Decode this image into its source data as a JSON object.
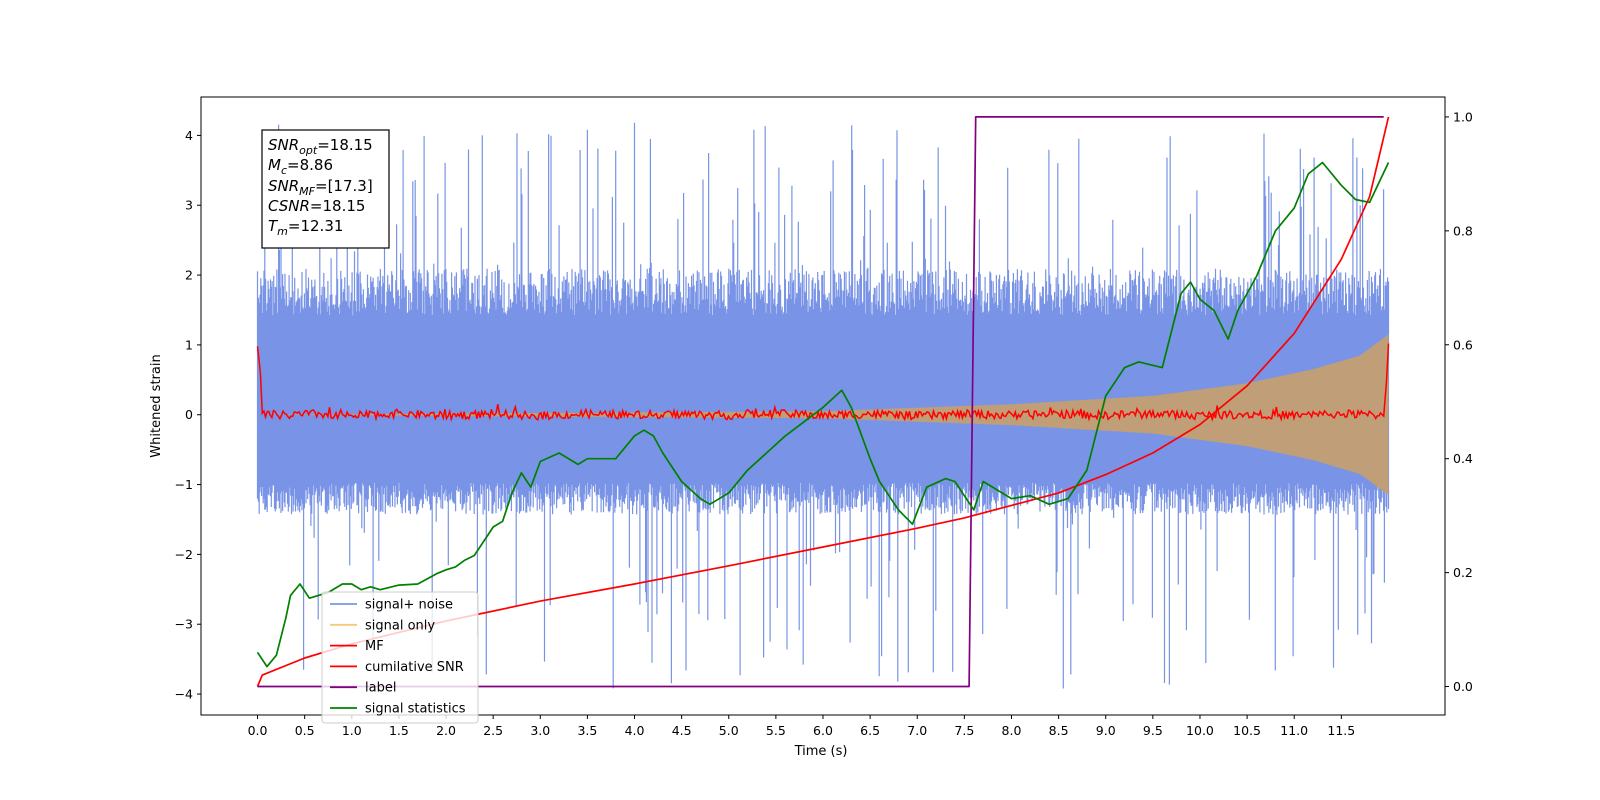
{
  "chart_data": {
    "type": "line",
    "xlabel": "Time (s)",
    "ylabel": "Whitened strain",
    "ylabel_right": "",
    "xlim": [
      -0.6,
      12.6
    ],
    "ylim_left": [
      -4.3,
      4.55
    ],
    "ylim_right": [
      -0.05,
      1.035
    ],
    "grid": false,
    "legend_position": "lower-left",
    "x_ticks": [
      0.0,
      0.5,
      1.0,
      1.5,
      2.0,
      2.5,
      3.0,
      3.5,
      4.0,
      4.5,
      5.0,
      5.5,
      6.0,
      6.5,
      7.0,
      7.5,
      8.0,
      8.5,
      9.0,
      9.5,
      10.0,
      10.5,
      11.0,
      11.5
    ],
    "x_tick_labels": [
      "0.0",
      "0.5",
      "1.0",
      "1.5",
      "2.0",
      "2.5",
      "3.0",
      "3.5",
      "4.0",
      "4.5",
      "5.0",
      "5.5",
      "6.0",
      "6.5",
      "7.0",
      "7.5",
      "8.0",
      "8.5",
      "9.0",
      "9.5",
      "10.0",
      "10.5",
      "11.0",
      "11.5"
    ],
    "y_left_ticks": [
      4,
      3,
      2,
      1,
      0,
      -1,
      -2,
      -3,
      -4
    ],
    "y_left_tick_labels": [
      "4",
      "3",
      "2",
      "1",
      "0",
      "−1",
      "−2",
      "−3",
      "−4"
    ],
    "y_right_ticks": [
      1.0,
      0.8,
      0.6,
      0.4,
      0.2,
      0.0
    ],
    "y_right_tick_labels": [
      "1.0",
      "0.8",
      "0.6",
      "0.4",
      "0.2",
      "0.0"
    ],
    "annotation": [
      {
        "name": "SNR",
        "sub": "opt",
        "value": "=18.15"
      },
      {
        "name": "M",
        "sub": "c",
        "value": "=8.86"
      },
      {
        "name": "SNR",
        "sub": "MF",
        "value": "=[17.3]"
      },
      {
        "name": "CSNR",
        "sub": "",
        "value": "=18.15"
      },
      {
        "name": "T",
        "sub": "m",
        "value": "=12.31"
      }
    ],
    "series": [
      {
        "name": "signal+ noise",
        "axis": "left",
        "color": "#7994e6",
        "kind": "noise-envelope",
        "x_range": [
          0.0,
          12.0
        ],
        "typical_band": [
          -1.3,
          1.9
        ],
        "max_peak": 4.18,
        "min_peak": -3.92
      },
      {
        "name": "signal only",
        "axis": "left",
        "color": "#f5c878",
        "kind": "chirp-envelope",
        "x_range": [
          0.0,
          12.0
        ],
        "amplitude": {
          "x": [
            0,
            6,
            8,
            9.5,
            10.5,
            11.2,
            11.7,
            12.0
          ],
          "y": [
            0.0,
            0.05,
            0.15,
            0.27,
            0.45,
            0.65,
            0.85,
            1.15
          ]
        }
      },
      {
        "name": "MF",
        "axis": "left",
        "color": "#ff0000",
        "kind": "line",
        "x": [
          0.0,
          0.03,
          0.05,
          0.3,
          0.6,
          1.0,
          1.5,
          2.0,
          2.5,
          3.0,
          3.5,
          4.0,
          4.5,
          5.0,
          5.5,
          6.0,
          6.5,
          7.0,
          7.5,
          8.0,
          8.5,
          9.0,
          9.5,
          10.0,
          10.5,
          11.0,
          11.5,
          11.95,
          11.98,
          12.0
        ],
        "y": [
          0.98,
          0.6,
          0.02,
          -0.03,
          0.04,
          -0.05,
          0.06,
          -0.04,
          0.03,
          -0.05,
          0.04,
          -0.02,
          0.03,
          -0.04,
          0.05,
          -0.03,
          0.04,
          -0.05,
          0.03,
          -0.02,
          0.04,
          -0.03,
          0.05,
          -0.04,
          0.03,
          -0.03,
          0.04,
          -0.02,
          0.5,
          1.02
        ]
      },
      {
        "name": "cumilative SNR",
        "axis": "right",
        "color": "#ff0000",
        "kind": "line",
        "x": [
          0.0,
          0.05,
          0.5,
          1,
          2,
          3,
          4,
          5,
          6,
          7,
          7.5,
          8,
          8.5,
          9,
          9.5,
          10,
          10.5,
          11,
          11.5,
          11.8,
          12.0
        ],
        "y": [
          0.0,
          0.02,
          0.05,
          0.075,
          0.115,
          0.15,
          0.18,
          0.212,
          0.245,
          0.278,
          0.296,
          0.318,
          0.34,
          0.372,
          0.41,
          0.46,
          0.528,
          0.62,
          0.75,
          0.86,
          1.0
        ]
      },
      {
        "name": "label",
        "axis": "right",
        "color": "#800080",
        "kind": "line",
        "x": [
          0.0,
          7.55,
          7.62,
          11.95
        ],
        "y": [
          0.0,
          0.0,
          1.0,
          1.0
        ]
      },
      {
        "name": "signal statistics",
        "axis": "right",
        "color": "#008000",
        "kind": "line",
        "x": [
          0.0,
          0.1,
          0.2,
          0.3,
          0.35,
          0.45,
          0.55,
          0.75,
          0.9,
          1.0,
          1.1,
          1.2,
          1.3,
          1.5,
          1.7,
          1.9,
          2.0,
          2.1,
          2.2,
          2.3,
          2.5,
          2.6,
          2.7,
          2.8,
          2.9,
          3.0,
          3.2,
          3.4,
          3.5,
          3.8,
          4.0,
          4.1,
          4.2,
          4.3,
          4.5,
          4.7,
          4.8,
          5.0,
          5.2,
          5.4,
          5.6,
          5.8,
          6.0,
          6.2,
          6.3,
          6.5,
          6.6,
          6.8,
          6.95,
          7.1,
          7.3,
          7.4,
          7.6,
          7.7,
          7.85,
          8.0,
          8.2,
          8.4,
          8.6,
          8.8,
          9.0,
          9.2,
          9.35,
          9.6,
          9.8,
          9.9,
          10.0,
          10.15,
          10.3,
          10.4,
          10.6,
          10.8,
          11.0,
          11.15,
          11.3,
          11.5,
          11.65,
          11.8,
          12.0
        ],
        "y": [
          0.06,
          0.035,
          0.055,
          0.12,
          0.16,
          0.18,
          0.155,
          0.165,
          0.18,
          0.18,
          0.17,
          0.175,
          0.17,
          0.178,
          0.18,
          0.198,
          0.205,
          0.21,
          0.222,
          0.23,
          0.28,
          0.29,
          0.34,
          0.375,
          0.35,
          0.395,
          0.41,
          0.39,
          0.4,
          0.4,
          0.44,
          0.45,
          0.44,
          0.41,
          0.36,
          0.33,
          0.32,
          0.34,
          0.38,
          0.41,
          0.44,
          0.465,
          0.49,
          0.52,
          0.49,
          0.4,
          0.36,
          0.31,
          0.285,
          0.35,
          0.365,
          0.36,
          0.31,
          0.36,
          0.345,
          0.33,
          0.335,
          0.32,
          0.33,
          0.38,
          0.51,
          0.56,
          0.57,
          0.56,
          0.69,
          0.71,
          0.68,
          0.66,
          0.61,
          0.66,
          0.72,
          0.8,
          0.84,
          0.9,
          0.92,
          0.88,
          0.855,
          0.85,
          0.92
        ]
      }
    ]
  }
}
